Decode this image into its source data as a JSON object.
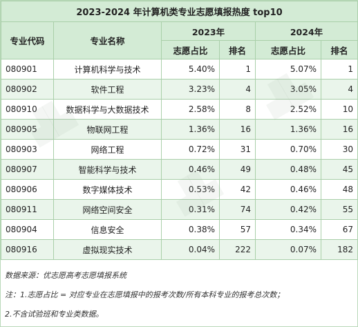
{
  "title": "2023-2024 年计算机类专业志愿填报热度 top10",
  "headers": {
    "code": "专业代码",
    "name": "专业名称",
    "year1": "2023年",
    "year2": "2024年",
    "pct": "志愿占比",
    "rank": "排名"
  },
  "rows": [
    {
      "code": "080901",
      "name": "计算机科学与技术",
      "pct2023": "5.40%",
      "rank2023": "1",
      "pct2024": "5.07%",
      "rank2024": "1"
    },
    {
      "code": "080902",
      "name": "软件工程",
      "pct2023": "3.23%",
      "rank2023": "4",
      "pct2024": "3.05%",
      "rank2024": "4"
    },
    {
      "code": "080910",
      "name": "数据科学与大数据技术",
      "pct2023": "2.58%",
      "rank2023": "8",
      "pct2024": "2.52%",
      "rank2024": "10"
    },
    {
      "code": "080905",
      "name": "物联网工程",
      "pct2023": "1.36%",
      "rank2023": "16",
      "pct2024": "1.36%",
      "rank2024": "16"
    },
    {
      "code": "080903",
      "name": "网络工程",
      "pct2023": "0.72%",
      "rank2023": "31",
      "pct2024": "0.70%",
      "rank2024": "30"
    },
    {
      "code": "080907",
      "name": "智能科学与技术",
      "pct2023": "0.46%",
      "rank2023": "49",
      "pct2024": "0.48%",
      "rank2024": "45"
    },
    {
      "code": "080906",
      "name": "数字媒体技术",
      "pct2023": "0.53%",
      "rank2023": "42",
      "pct2024": "0.46%",
      "rank2024": "48"
    },
    {
      "code": "080911",
      "name": "网络空间安全",
      "pct2023": "0.31%",
      "rank2023": "74",
      "pct2024": "0.42%",
      "rank2024": "55"
    },
    {
      "code": "080904",
      "name": "信息安全",
      "pct2023": "0.38%",
      "rank2023": "57",
      "pct2024": "0.34%",
      "rank2024": "67"
    },
    {
      "code": "080916",
      "name": "虚拟现实技术",
      "pct2023": "0.04%",
      "rank2023": "222",
      "pct2024": "0.07%",
      "rank2024": "182"
    }
  ],
  "notes": [
    "数据来源：优志愿高考志愿填报系统",
    "注：1.志愿占比 = 对应专业在志愿填报中的报考次数/所有本科专业的报考总次数；",
    "2.不含试验班和专业类数据。"
  ],
  "colors": {
    "header_bg": "#d3ebd5",
    "alt_row_bg": "#eaf5eb",
    "border": "#a9cfa9"
  }
}
